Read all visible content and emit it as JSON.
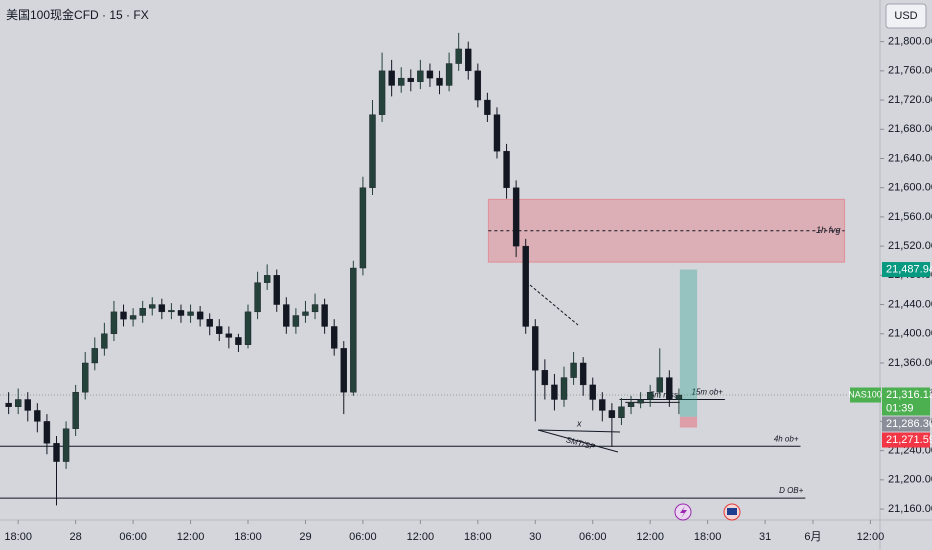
{
  "header": {
    "symbol_title": "美国100现金CFD · 15 · FX",
    "currency": "USD"
  },
  "chart_data": {
    "type": "candlestick",
    "x": [
      17,
      18,
      19,
      20,
      21,
      22,
      23,
      24,
      25,
      26,
      27,
      28,
      29,
      30,
      31,
      32,
      33,
      34,
      35,
      36,
      37,
      38,
      39,
      40,
      41,
      42,
      43,
      44,
      45,
      46,
      47,
      48,
      49,
      50,
      51,
      52,
      53,
      54,
      55,
      56,
      57,
      58,
      59,
      60,
      61,
      62,
      63,
      64,
      65,
      66,
      67,
      68,
      69,
      70,
      71,
      72,
      73,
      74,
      75,
      76,
      77,
      78,
      79,
      80,
      81,
      82,
      83,
      84,
      85,
      86,
      87
    ],
    "open": [
      21305,
      21300,
      21310,
      21295,
      21280,
      21250,
      21225,
      21270,
      21320,
      21360,
      21380,
      21400,
      21430,
      21420,
      21425,
      21435,
      21440,
      21430,
      21432,
      21425,
      21430,
      21420,
      21410,
      21400,
      21395,
      21385,
      21430,
      21470,
      21480,
      21440,
      21410,
      21425,
      21430,
      21440,
      21410,
      21380,
      21320,
      21490,
      21600,
      21700,
      21760,
      21740,
      21750,
      21745,
      21760,
      21750,
      21740,
      21770,
      21790,
      21760,
      21720,
      21700,
      21650,
      21600,
      21520,
      21410,
      21350,
      21330,
      21310,
      21340,
      21360,
      21330,
      21310,
      21295,
      21285,
      21300,
      21305,
      21310,
      21320,
      21340,
      21310
    ],
    "high": [
      21320,
      21325,
      21320,
      21305,
      21290,
      21260,
      21280,
      21330,
      21375,
      21395,
      21415,
      21445,
      21440,
      21435,
      21445,
      21450,
      21448,
      21442,
      21440,
      21440,
      21438,
      21428,
      21420,
      21410,
      21400,
      21440,
      21485,
      21495,
      21488,
      21450,
      21435,
      21445,
      21455,
      21448,
      21420,
      21390,
      21500,
      21615,
      21720,
      21785,
      21775,
      21765,
      21762,
      21775,
      21770,
      21760,
      21785,
      21812,
      21800,
      21770,
      21730,
      21710,
      21660,
      21610,
      21530,
      21420,
      21365,
      21345,
      21355,
      21375,
      21368,
      21340,
      21320,
      21305,
      21312,
      21315,
      21320,
      21330,
      21380,
      21350,
      21325
    ],
    "low": [
      21290,
      21290,
      21280,
      21265,
      21235,
      21165,
      21215,
      21260,
      21310,
      21350,
      21370,
      21390,
      21410,
      21410,
      21415,
      21425,
      21420,
      21420,
      21415,
      21415,
      21410,
      21398,
      21390,
      21380,
      21375,
      21380,
      21420,
      21460,
      21430,
      21400,
      21400,
      21415,
      21420,
      21400,
      21370,
      21290,
      21315,
      21480,
      21590,
      21690,
      21725,
      21730,
      21732,
      21735,
      21738,
      21728,
      21732,
      21760,
      21748,
      21710,
      21690,
      21640,
      21585,
      21505,
      21400,
      21280,
      21310,
      21295,
      21300,
      21330,
      21315,
      21295,
      21280,
      21245,
      21275,
      21290,
      21298,
      21300,
      21312,
      21300,
      21290
    ],
    "close": [
      21300,
      21310,
      21295,
      21280,
      21250,
      21225,
      21270,
      21320,
      21360,
      21380,
      21400,
      21430,
      21420,
      21425,
      21435,
      21440,
      21430,
      21432,
      21425,
      21430,
      21420,
      21410,
      21400,
      21395,
      21385,
      21430,
      21470,
      21480,
      21440,
      21410,
      21425,
      21430,
      21440,
      21410,
      21380,
      21320,
      21490,
      21600,
      21700,
      21760,
      21740,
      21750,
      21745,
      21760,
      21750,
      21740,
      21770,
      21790,
      21760,
      21720,
      21700,
      21650,
      21600,
      21520,
      21410,
      21350,
      21330,
      21310,
      21340,
      21360,
      21330,
      21310,
      21295,
      21285,
      21300,
      21305,
      21310,
      21320,
      21340,
      21310,
      21316.13
    ],
    "up_color": "#24423a",
    "down_color": "#131722",
    "xlim": [
      16.1,
      108
    ],
    "xticks": [
      {
        "value": 18,
        "label": "18:00"
      },
      {
        "value": 24,
        "label": "28"
      },
      {
        "value": 30,
        "label": "06:00"
      },
      {
        "value": 36,
        "label": "12:00"
      },
      {
        "value": 42,
        "label": "18:00"
      },
      {
        "value": 48,
        "label": "29"
      },
      {
        "value": 54,
        "label": "06:00"
      },
      {
        "value": 60,
        "label": "12:00"
      },
      {
        "value": 66,
        "label": "18:00"
      },
      {
        "value": 72,
        "label": "30"
      },
      {
        "value": 78,
        "label": "06:00"
      },
      {
        "value": 84,
        "label": "12:00"
      },
      {
        "value": 90,
        "label": "18:00"
      },
      {
        "value": 96,
        "label": "31"
      },
      {
        "value": 101,
        "label": "6月"
      },
      {
        "value": 107,
        "label": "12:00"
      }
    ],
    "ylim": [
      21145,
      21857
    ],
    "yticks": [
      {
        "value": 21160,
        "label": "21,160.00"
      },
      {
        "value": 21200,
        "label": "21,200.00"
      },
      {
        "value": 21240,
        "label": "21,240.00"
      },
      {
        "value": 21280,
        "label": "21,280.00"
      },
      {
        "value": 21320,
        "label": "21,320.00"
      },
      {
        "value": 21360,
        "label": "21,360.00"
      },
      {
        "value": 21400,
        "label": "21,400.00"
      },
      {
        "value": 21440,
        "label": "21,440.00"
      },
      {
        "value": 21480,
        "label": "21,480.00"
      },
      {
        "value": 21520,
        "label": "21,520.00"
      },
      {
        "value": 21560,
        "label": "21,560.00"
      },
      {
        "value": 21600,
        "label": "21,600.00"
      },
      {
        "value": 21640,
        "label": "21,640.00"
      },
      {
        "value": 21680,
        "label": "21,680.00"
      },
      {
        "value": 21720,
        "label": "21,720.00"
      },
      {
        "value": 21760,
        "label": "21,760.00"
      },
      {
        "value": 21800,
        "label": "21,800.00"
      }
    ],
    "grid": false,
    "symbol": "NAS100",
    "last_price": {
      "value": 21316.13,
      "label": "21,316.13"
    },
    "countdown": "01:39",
    "position": {
      "target": {
        "value": 21487.94,
        "label": "21,487.94"
      },
      "entry": {
        "value": 21286.3,
        "label": "21,286.30"
      },
      "stop": {
        "value": 21271.59,
        "label": "21,271.59"
      },
      "x": [
        87.1,
        88.9
      ]
    },
    "fvg": {
      "label": "1h fvg",
      "low": 21498,
      "high": 21584,
      "mid": 21541,
      "x": [
        67.1,
        104.3
      ]
    },
    "levels": [
      {
        "label": "4h ob+",
        "value": 21246,
        "x": [
          16.1,
          99.7
        ]
      },
      {
        "label": "D OB+",
        "value": 21175,
        "x": [
          16.1,
          100.2
        ]
      },
      {
        "label": "15m ob+",
        "value": 21310,
        "x": [
          80.8,
          91.8
        ]
      },
      {
        "label": "5m mss",
        "value": 21306,
        "x": [
          81.4,
          87.1
        ]
      }
    ],
    "smt": {
      "marker": "x",
      "label": "SMT/SP"
    }
  }
}
